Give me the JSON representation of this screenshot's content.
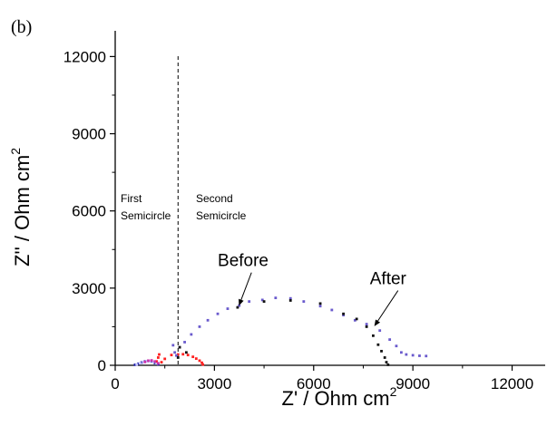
{
  "chart_data": {
    "type": "scatter",
    "panel_label": "(b)",
    "title": "",
    "xlabel": "Z' / Ohm cm",
    "xlabel_sup": "2",
    "ylabel": "Z'' / Ohm cm",
    "ylabel_sup": "2",
    "xlim": [
      0,
      13000
    ],
    "ylim": [
      0,
      13000
    ],
    "xticks": [
      0,
      3000,
      6000,
      9000,
      12000
    ],
    "yticks": [
      0,
      3000,
      6000,
      9000,
      12000
    ],
    "xtick_labels": [
      "0",
      "3000",
      "6000",
      "9000",
      "12000"
    ],
    "ytick_labels": [
      "0",
      "3000",
      "6000",
      "9000",
      "12000"
    ],
    "grid": false,
    "divider_x": 1900,
    "region_labels": {
      "first_line1": "First",
      "first_line2": "Semicircle",
      "second_line1": "Second",
      "second_line2": "Semicircle"
    },
    "annotations": [
      {
        "text": "Before",
        "text_at": [
          3100,
          3850
        ],
        "arrow_to": [
          3750,
          2350
        ]
      },
      {
        "text": "After",
        "text_at": [
          7700,
          3150
        ],
        "arrow_to": [
          7850,
          1550
        ]
      }
    ],
    "series": [
      {
        "color": "#2a2ab0",
        "points": [
          [
            600,
            20
          ],
          [
            700,
            60
          ],
          [
            800,
            110
          ],
          [
            900,
            150
          ],
          [
            1000,
            170
          ],
          [
            1100,
            150
          ],
          [
            1200,
            90
          ],
          [
            1300,
            40
          ]
        ]
      },
      {
        "color": "#c8c8ff",
        "points": [
          [
            650,
            30
          ],
          [
            750,
            80
          ],
          [
            850,
            130
          ],
          [
            950,
            160
          ],
          [
            1050,
            165
          ],
          [
            1150,
            130
          ],
          [
            1250,
            70
          ]
        ]
      },
      {
        "color": "#ff2020",
        "points": [
          [
            1250,
            150
          ],
          [
            1300,
            300
          ],
          [
            1330,
            420
          ],
          [
            1400,
            120
          ],
          [
            1500,
            250
          ],
          [
            1700,
            400
          ],
          [
            1900,
            420
          ],
          [
            2050,
            430
          ],
          [
            2200,
            400
          ],
          [
            2350,
            330
          ],
          [
            2450,
            260
          ],
          [
            2550,
            180
          ],
          [
            2620,
            100
          ],
          [
            2650,
            30
          ]
        ]
      },
      {
        "color": "#cc33aa",
        "points": [
          [
            900,
            130
          ],
          [
            1000,
            180
          ],
          [
            1100,
            190
          ],
          [
            1200,
            150
          ],
          [
            1300,
            80
          ]
        ]
      },
      {
        "color": "#6a5acd",
        "points": [
          [
            1750,
            780
          ],
          [
            1800,
            500
          ],
          [
            1850,
            380
          ],
          [
            1950,
            700
          ],
          [
            2100,
            900
          ],
          [
            2300,
            1200
          ],
          [
            2550,
            1500
          ],
          [
            2800,
            1750
          ],
          [
            3100,
            2000
          ],
          [
            3400,
            2200
          ],
          [
            3750,
            2320
          ],
          [
            4050,
            2480
          ],
          [
            4450,
            2540
          ],
          [
            4850,
            2620
          ],
          [
            5300,
            2600
          ],
          [
            5700,
            2480
          ],
          [
            6200,
            2300
          ],
          [
            6550,
            2150
          ],
          [
            6900,
            1950
          ],
          [
            7250,
            1750
          ],
          [
            7600,
            1600
          ],
          [
            8000,
            1350
          ],
          [
            8300,
            1000
          ],
          [
            8500,
            750
          ],
          [
            8650,
            500
          ],
          [
            8800,
            420
          ],
          [
            9000,
            390
          ],
          [
            9200,
            370
          ],
          [
            9400,
            360
          ]
        ]
      },
      {
        "color": "#111111",
        "points": [
          [
            1900,
            300
          ],
          [
            1950,
            700
          ],
          [
            2150,
            500
          ],
          [
            3700,
            2250
          ],
          [
            4500,
            2480
          ],
          [
            5300,
            2520
          ],
          [
            6200,
            2400
          ],
          [
            6900,
            2000
          ],
          [
            7300,
            1800
          ],
          [
            7600,
            1500
          ],
          [
            7800,
            1150
          ],
          [
            7950,
            800
          ],
          [
            8050,
            550
          ],
          [
            8150,
            300
          ],
          [
            8200,
            120
          ],
          [
            8250,
            20
          ]
        ]
      }
    ]
  }
}
